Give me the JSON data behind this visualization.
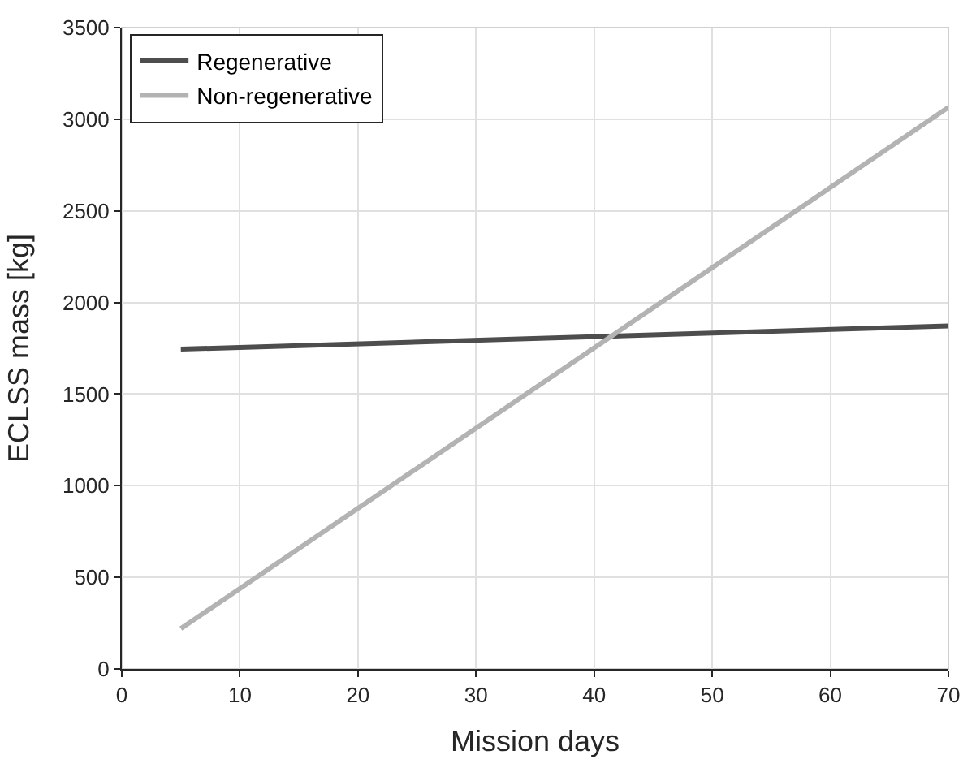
{
  "chart_data": {
    "type": "line",
    "xlabel": "Mission days",
    "ylabel": "ECLSS mass [kg]",
    "x": [
      5,
      70
    ],
    "series": [
      {
        "name": "Regenerative",
        "color": "#4d4d4d",
        "values": [
          1745,
          1872
        ]
      },
      {
        "name": "Non-regenerative",
        "color": "#b3b3b3",
        "values": [
          220,
          3065
        ]
      }
    ],
    "xlim": [
      0,
      70
    ],
    "xticks": [
      0,
      10,
      20,
      30,
      40,
      50,
      60,
      70
    ],
    "ylim": [
      0,
      3500
    ],
    "yticks": [
      0,
      500,
      1000,
      1500,
      2000,
      2500,
      3000,
      3500
    ],
    "grid": true,
    "legend": "top left",
    "marker": "none",
    "line_style": "solid"
  }
}
